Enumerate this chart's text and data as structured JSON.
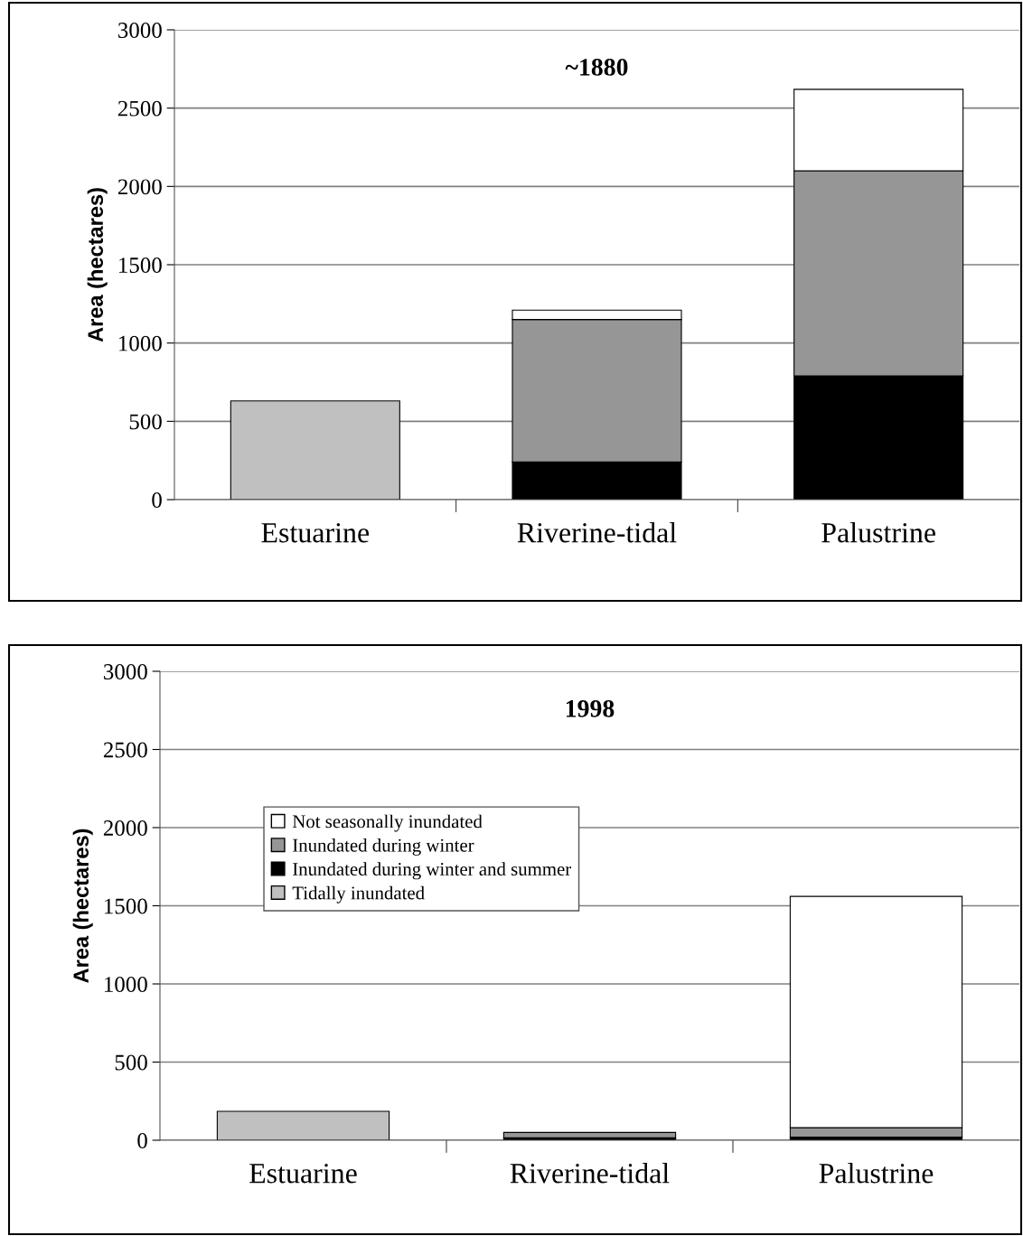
{
  "chart_data": [
    {
      "type": "bar",
      "title": "~1880",
      "ylabel": "Area (hectares)",
      "categories": [
        "Estuarine",
        "Riverine-tidal",
        "Palustrine"
      ],
      "stacked": true,
      "ylim": [
        0,
        3000
      ],
      "yticks": [
        0,
        500,
        1000,
        1500,
        2000,
        2500,
        3000
      ],
      "grid": "y",
      "legend": false,
      "series": [
        {
          "color": "#c0c0c0",
          "values": [
            630,
            null,
            null
          ]
        },
        {
          "color": "#000000",
          "values": [
            null,
            240,
            790
          ]
        },
        {
          "color": "#969696",
          "values": [
            null,
            910,
            1310
          ]
        },
        {
          "color": "#ffffff",
          "values": [
            null,
            60,
            520
          ]
        }
      ]
    },
    {
      "type": "bar",
      "title": "1998",
      "ylabel": "Area (hectares)",
      "categories": [
        "Estuarine",
        "Riverine-tidal",
        "Palustrine"
      ],
      "stacked": true,
      "ylim": [
        0,
        3000
      ],
      "yticks": [
        0,
        500,
        1000,
        1500,
        2000,
        2500,
        3000
      ],
      "grid": "y",
      "legend": "center left",
      "series": [
        {
          "name": "Tidally inundated",
          "color": "#c0c0c0",
          "values": [
            185,
            null,
            null
          ]
        },
        {
          "name": "Inundated during winter and summer",
          "color": "#000000",
          "values": [
            null,
            15,
            20
          ]
        },
        {
          "name": "Inundated during winter",
          "color": "#969696",
          "values": [
            null,
            35,
            60
          ]
        },
        {
          "name": "Not seasonally inundated",
          "color": "#ffffff",
          "values": [
            null,
            null,
            1480
          ]
        }
      ]
    }
  ]
}
